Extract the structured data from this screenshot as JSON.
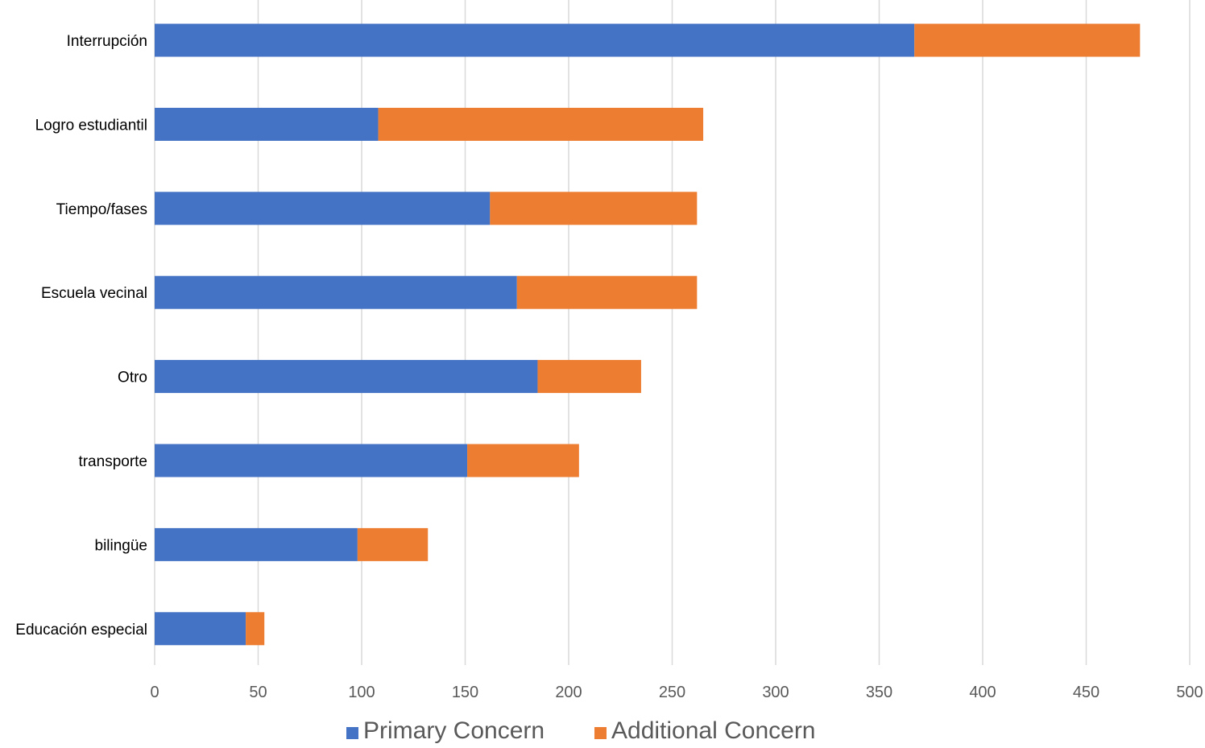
{
  "chart_data": {
    "type": "bar",
    "orientation": "horizontal",
    "stacked": true,
    "categories": [
      "Interrupción",
      "Logro estudiantil",
      "Tiempo/fases",
      "Escuela vecinal",
      "Otro",
      "transporte",
      "bilingüe",
      "Educación especial"
    ],
    "series": [
      {
        "name": "Primary Concern",
        "color": "#4472c4",
        "values": [
          367,
          108,
          162,
          175,
          185,
          151,
          98,
          44
        ]
      },
      {
        "name": "Additional Concern",
        "color": "#ed7d31",
        "values": [
          109,
          157,
          100,
          87,
          50,
          54,
          34,
          9
        ]
      }
    ],
    "xlim": [
      0,
      500
    ],
    "xticks": [
      0,
      50,
      100,
      150,
      200,
      250,
      300,
      350,
      400,
      450,
      500
    ],
    "grid": "vertical",
    "legend_position": "bottom",
    "title": "",
    "xlabel": "",
    "ylabel": ""
  }
}
